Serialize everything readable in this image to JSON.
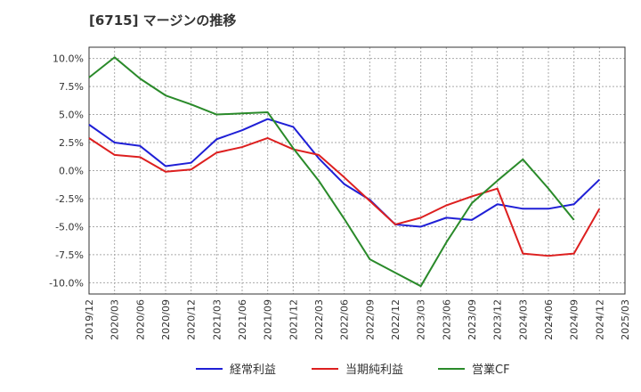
{
  "title": "[6715]  マージンの推移",
  "chart_data": {
    "type": "line",
    "x": [
      "2019/12",
      "2020/03",
      "2020/06",
      "2020/09",
      "2020/12",
      "2021/03",
      "2021/06",
      "2021/09",
      "2021/12",
      "2022/03",
      "2022/06",
      "2022/09",
      "2022/12",
      "2023/03",
      "2023/06",
      "2023/09",
      "2023/12",
      "2024/03",
      "2024/06",
      "2024/09",
      "2024/12",
      "2025/03"
    ],
    "ylim": [
      -11,
      11
    ],
    "yticks": [
      -10,
      -7.5,
      -5,
      -2.5,
      0,
      2.5,
      5,
      7.5,
      10
    ],
    "ytick_labels": [
      "-10.0%",
      "-7.5%",
      "-5.0%",
      "-2.5%",
      "0.0%",
      "2.5%",
      "5.0%",
      "7.5%",
      "10.0%"
    ],
    "grid": true,
    "legend_position": "bottom",
    "series": [
      {
        "name": "経常利益",
        "color": "#1f1fd6",
        "values": [
          4.1,
          2.5,
          2.2,
          0.4,
          0.7,
          2.8,
          3.6,
          4.6,
          3.9,
          1.1,
          -1.2,
          -2.6,
          -4.8,
          -5.0,
          -4.2,
          -4.4,
          -3.0,
          -3.4,
          -3.4,
          -3.0,
          -0.8,
          null
        ]
      },
      {
        "name": "当期純利益",
        "color": "#dd1f1f",
        "values": [
          2.9,
          1.4,
          1.2,
          -0.1,
          0.1,
          1.6,
          2.1,
          2.9,
          1.9,
          1.4,
          -0.6,
          -2.7,
          -4.8,
          -4.2,
          -3.1,
          -2.3,
          -1.6,
          -7.4,
          -7.6,
          -7.4,
          -3.4,
          null
        ]
      },
      {
        "name": "営業CF",
        "color": "#2a8a2a",
        "values": [
          8.3,
          10.1,
          8.2,
          6.7,
          5.9,
          5.0,
          5.1,
          5.2,
          2.0,
          -0.9,
          -4.3,
          -7.9,
          -9.1,
          -10.3,
          -6.4,
          -2.9,
          -0.9,
          1.0,
          -1.6,
          -4.4,
          null,
          null
        ]
      }
    ]
  }
}
